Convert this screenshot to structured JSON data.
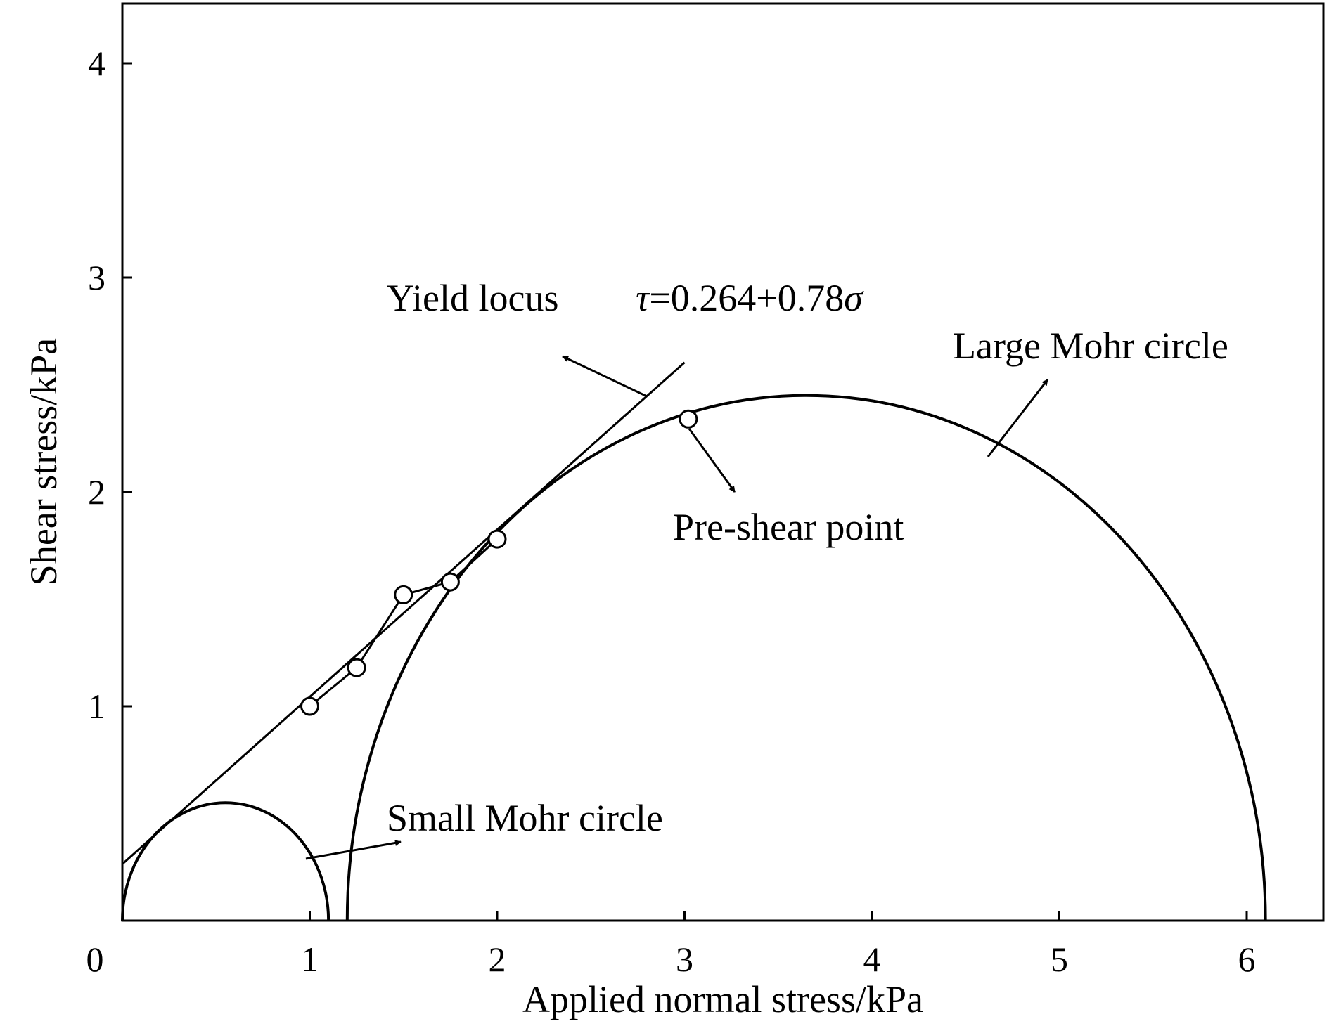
{
  "chart_data": {
    "type": "scatter",
    "title": "",
    "xlabel": "Applied normal stress/kPa",
    "ylabel": "Shear stress/kPa",
    "xlim": [
      0,
      6.5
    ],
    "ylim": [
      0,
      4.3
    ],
    "xticks": [
      0,
      1,
      2,
      3,
      4,
      5,
      6
    ],
    "yticks": [
      1,
      2,
      3,
      4
    ],
    "grid": false,
    "legend": "none",
    "series": [
      {
        "kind": "points",
        "marker": "open-circle",
        "points": [
          {
            "x": 1.0,
            "y": 1.0
          },
          {
            "x": 1.25,
            "y": 1.18
          },
          {
            "x": 1.5,
            "y": 1.52
          },
          {
            "x": 1.75,
            "y": 1.58
          },
          {
            "x": 2.0,
            "y": 1.78
          },
          {
            "x": 3.02,
            "y": 2.34
          }
        ]
      },
      {
        "kind": "line",
        "intercept": 0.264,
        "slope": 0.78,
        "x_range": [
          0,
          3.0
        ]
      },
      {
        "kind": "semicircle",
        "center": 0.55,
        "radius": 0.55
      },
      {
        "kind": "semicircle",
        "center": 3.65,
        "radius": 2.45
      }
    ],
    "annotations": {
      "yield_locus_label": "Yield locus",
      "equation_tau": "τ",
      "equation_body": "=0.264+0.78",
      "equation_sigma": "σ",
      "large_circle": "Large Mohr circle",
      "small_circle": "Small Mohr circle",
      "pre_shear": "Pre-shear point"
    }
  }
}
